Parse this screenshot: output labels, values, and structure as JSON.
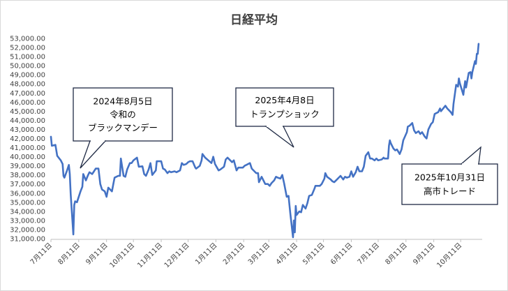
{
  "chart_data": {
    "type": "line",
    "title": "日経平均",
    "xlabel": "",
    "ylabel": "",
    "ylim": [
      31000,
      53000
    ],
    "y_ticks": [
      "31,000.00",
      "32,000.00",
      "33,000.00",
      "34,000.00",
      "35,000.00",
      "36,000.00",
      "37,000.00",
      "38,000.00",
      "39,000.00",
      "40,000.00",
      "41,000.00",
      "42,000.00",
      "43,000.00",
      "44,000.00",
      "45,000.00",
      "46,000.00",
      "47,000.00",
      "48,000.00",
      "49,000.00",
      "50,000.00",
      "51,000.00",
      "52,000.00",
      "53,000.00"
    ],
    "x_ticks": [
      "7月11日",
      "8月11日",
      "9月11日",
      "10月11日",
      "11月11日",
      "12月11日",
      "1月11日",
      "2月11日",
      "3月11日",
      "4月11日",
      "5月11日",
      "6月11日",
      "7月11日",
      "8月11日",
      "9月11日",
      "10月11日"
    ],
    "x_range": [
      "2024-07-11",
      "2025-11-04"
    ],
    "line_color": "#4472c4",
    "grid": false,
    "series": [
      {
        "points": [
          [
            "2024-07-11",
            42200
          ],
          [
            "2024-07-12",
            41200
          ],
          [
            "2024-07-16",
            41300
          ],
          [
            "2024-07-18",
            40100
          ],
          [
            "2024-07-22",
            39600
          ],
          [
            "2024-07-24",
            39200
          ],
          [
            "2024-07-25",
            37900
          ],
          [
            "2024-07-26",
            37700
          ],
          [
            "2024-07-29",
            38500
          ],
          [
            "2024-07-31",
            39100
          ],
          [
            "2024-08-01",
            38100
          ],
          [
            "2024-08-02",
            35900
          ],
          [
            "2024-08-05",
            31460
          ],
          [
            "2024-08-06",
            34700
          ],
          [
            "2024-08-07",
            35100
          ],
          [
            "2024-08-09",
            35000
          ],
          [
            "2024-08-13",
            36200
          ],
          [
            "2024-08-15",
            36700
          ],
          [
            "2024-08-16",
            38100
          ],
          [
            "2024-08-19",
            37400
          ],
          [
            "2024-08-21",
            37900
          ],
          [
            "2024-08-23",
            38300
          ],
          [
            "2024-08-26",
            38100
          ],
          [
            "2024-08-28",
            38400
          ],
          [
            "2024-08-30",
            38700
          ],
          [
            "2024-09-02",
            38700
          ],
          [
            "2024-09-04",
            37000
          ],
          [
            "2024-09-06",
            36400
          ],
          [
            "2024-09-09",
            36200
          ],
          [
            "2024-09-11",
            35600
          ],
          [
            "2024-09-13",
            36600
          ],
          [
            "2024-09-17",
            36200
          ],
          [
            "2024-09-19",
            37200
          ],
          [
            "2024-09-20",
            37700
          ],
          [
            "2024-09-24",
            37900
          ],
          [
            "2024-09-26",
            37900
          ],
          [
            "2024-09-27",
            39800
          ],
          [
            "2024-09-30",
            37900
          ],
          [
            "2024-10-02",
            37800
          ],
          [
            "2024-10-04",
            38600
          ],
          [
            "2024-10-07",
            39300
          ],
          [
            "2024-10-09",
            39300
          ],
          [
            "2024-10-11",
            39600
          ],
          [
            "2024-10-15",
            39900
          ],
          [
            "2024-10-17",
            38900
          ],
          [
            "2024-10-21",
            38950
          ],
          [
            "2024-10-23",
            38100
          ],
          [
            "2024-10-25",
            37900
          ],
          [
            "2024-10-28",
            38600
          ],
          [
            "2024-10-30",
            39300
          ],
          [
            "2024-11-01",
            38000
          ],
          [
            "2024-11-05",
            38500
          ],
          [
            "2024-11-06",
            39500
          ],
          [
            "2024-11-08",
            39500
          ],
          [
            "2024-11-11",
            39500
          ],
          [
            "2024-11-13",
            38700
          ],
          [
            "2024-11-15",
            38600
          ],
          [
            "2024-11-18",
            38200
          ],
          [
            "2024-11-20",
            38400
          ],
          [
            "2024-11-22",
            38300
          ],
          [
            "2024-11-26",
            38400
          ],
          [
            "2024-11-28",
            38300
          ],
          [
            "2024-12-02",
            38500
          ],
          [
            "2024-12-04",
            39300
          ],
          [
            "2024-12-06",
            39100
          ],
          [
            "2024-12-09",
            39200
          ],
          [
            "2024-12-11",
            39400
          ],
          [
            "2024-12-13",
            39500
          ],
          [
            "2024-12-16",
            39500
          ],
          [
            "2024-12-19",
            38800
          ],
          [
            "2024-12-20",
            38700
          ],
          [
            "2024-12-24",
            39000
          ],
          [
            "2024-12-26",
            39600
          ],
          [
            "2024-12-27",
            40300
          ],
          [
            "2024-12-30",
            39900
          ],
          [
            "2025-01-06",
            39300
          ],
          [
            "2025-01-08",
            40000
          ],
          [
            "2025-01-10",
            39200
          ],
          [
            "2025-01-14",
            38500
          ],
          [
            "2025-01-16",
            38600
          ],
          [
            "2025-01-20",
            38900
          ],
          [
            "2025-01-22",
            39700
          ],
          [
            "2025-01-24",
            39900
          ],
          [
            "2025-01-27",
            39600
          ],
          [
            "2025-01-29",
            39400
          ],
          [
            "2025-01-31",
            39600
          ],
          [
            "2025-02-03",
            38500
          ],
          [
            "2025-02-05",
            38800
          ],
          [
            "2025-02-07",
            38800
          ],
          [
            "2025-02-10",
            38800
          ],
          [
            "2025-02-12",
            39000
          ],
          [
            "2025-02-14",
            39100
          ],
          [
            "2025-02-18",
            39300
          ],
          [
            "2025-02-20",
            38700
          ],
          [
            "2025-02-25",
            38200
          ],
          [
            "2025-02-27",
            38200
          ],
          [
            "2025-02-28",
            37200
          ],
          [
            "2025-03-03",
            37800
          ],
          [
            "2025-03-05",
            37400
          ],
          [
            "2025-03-07",
            37000
          ],
          [
            "2025-03-10",
            37000
          ],
          [
            "2025-03-12",
            36800
          ],
          [
            "2025-03-14",
            37100
          ],
          [
            "2025-03-17",
            37400
          ],
          [
            "2025-03-19",
            37800
          ],
          [
            "2025-03-21",
            37700
          ],
          [
            "2025-03-24",
            37600
          ],
          [
            "2025-03-26",
            38000
          ],
          [
            "2025-03-28",
            37100
          ],
          [
            "2025-03-31",
            35600
          ],
          [
            "2025-04-02",
            35700
          ],
          [
            "2025-04-03",
            34700
          ],
          [
            "2025-04-04",
            33800
          ],
          [
            "2025-04-07",
            31150
          ],
          [
            "2025-04-08",
            33000
          ],
          [
            "2025-04-09",
            31700
          ],
          [
            "2025-04-10",
            34600
          ],
          [
            "2025-04-11",
            33600
          ],
          [
            "2025-04-14",
            34000
          ],
          [
            "2025-04-16",
            33900
          ],
          [
            "2025-04-18",
            34700
          ],
          [
            "2025-04-21",
            34300
          ],
          [
            "2025-04-23",
            34900
          ],
          [
            "2025-04-25",
            35700
          ],
          [
            "2025-04-28",
            35800
          ],
          [
            "2025-05-01",
            36500
          ],
          [
            "2025-05-02",
            36800
          ],
          [
            "2025-05-07",
            36800
          ],
          [
            "2025-05-09",
            37000
          ],
          [
            "2025-05-12",
            37600
          ],
          [
            "2025-05-13",
            38200
          ],
          [
            "2025-05-15",
            37800
          ],
          [
            "2025-05-19",
            37500
          ],
          [
            "2025-05-21",
            37300
          ],
          [
            "2025-05-23",
            37200
          ],
          [
            "2025-05-26",
            37500
          ],
          [
            "2025-05-28",
            37700
          ],
          [
            "2025-05-30",
            37900
          ],
          [
            "2025-06-02",
            37500
          ],
          [
            "2025-06-04",
            37800
          ],
          [
            "2025-06-06",
            37700
          ],
          [
            "2025-06-09",
            37800
          ],
          [
            "2025-06-11",
            38400
          ],
          [
            "2025-06-13",
            37800
          ],
          [
            "2025-06-16",
            38300
          ],
          [
            "2025-06-18",
            38900
          ],
          [
            "2025-06-20",
            38400
          ],
          [
            "2025-06-23",
            38400
          ],
          [
            "2025-06-25",
            38900
          ],
          [
            "2025-06-27",
            40100
          ],
          [
            "2025-06-30",
            40500
          ],
          [
            "2025-07-02",
            39800
          ],
          [
            "2025-07-04",
            39800
          ],
          [
            "2025-07-07",
            39600
          ],
          [
            "2025-07-09",
            39800
          ],
          [
            "2025-07-11",
            39600
          ],
          [
            "2025-07-15",
            39700
          ],
          [
            "2025-07-17",
            39900
          ],
          [
            "2025-07-18",
            39800
          ],
          [
            "2025-07-22",
            39800
          ],
          [
            "2025-07-23",
            41200
          ],
          [
            "2025-07-24",
            41800
          ],
          [
            "2025-07-25",
            41500
          ],
          [
            "2025-07-28",
            40900
          ],
          [
            "2025-07-30",
            40700
          ],
          [
            "2025-08-01",
            40800
          ],
          [
            "2025-08-04",
            40300
          ],
          [
            "2025-08-06",
            40800
          ],
          [
            "2025-08-08",
            41800
          ],
          [
            "2025-08-12",
            42700
          ],
          [
            "2025-08-13",
            43300
          ],
          [
            "2025-08-15",
            43400
          ],
          [
            "2025-08-18",
            43700
          ],
          [
            "2025-08-20",
            42900
          ],
          [
            "2025-08-22",
            42600
          ],
          [
            "2025-08-25",
            42800
          ],
          [
            "2025-08-27",
            42500
          ],
          [
            "2025-08-29",
            42700
          ],
          [
            "2025-09-01",
            42200
          ],
          [
            "2025-09-03",
            42000
          ],
          [
            "2025-09-05",
            43000
          ],
          [
            "2025-09-08",
            43600
          ],
          [
            "2025-09-10",
            43800
          ],
          [
            "2025-09-12",
            44700
          ],
          [
            "2025-09-16",
            44900
          ],
          [
            "2025-09-18",
            45300
          ],
          [
            "2025-09-19",
            45000
          ],
          [
            "2025-09-24",
            45600
          ],
          [
            "2025-09-26",
            45300
          ],
          [
            "2025-09-30",
            44900
          ],
          [
            "2025-10-02",
            44600
          ],
          [
            "2025-10-03",
            45800
          ],
          [
            "2025-10-06",
            47900
          ],
          [
            "2025-10-08",
            47700
          ],
          [
            "2025-10-09",
            48600
          ],
          [
            "2025-10-10",
            48100
          ],
          [
            "2025-10-14",
            46800
          ],
          [
            "2025-10-15",
            47600
          ],
          [
            "2025-10-16",
            48300
          ],
          [
            "2025-10-17",
            47600
          ],
          [
            "2025-10-20",
            49200
          ],
          [
            "2025-10-22",
            49300
          ],
          [
            "2025-10-23",
            48600
          ],
          [
            "2025-10-24",
            49300
          ],
          [
            "2025-10-27",
            50500
          ],
          [
            "2025-10-28",
            50200
          ],
          [
            "2025-10-29",
            51300
          ],
          [
            "2025-10-30",
            51300
          ],
          [
            "2025-10-31",
            52400
          ]
        ]
      }
    ],
    "annotations": [
      {
        "lines": [
          "2024年8月5日",
          "令和の",
          "ブラックマンデー"
        ]
      },
      {
        "lines": [
          "2025年4月8日",
          "トランプショック"
        ]
      },
      {
        "lines": [
          "2025年10月31日",
          "高市トレード"
        ]
      }
    ]
  }
}
